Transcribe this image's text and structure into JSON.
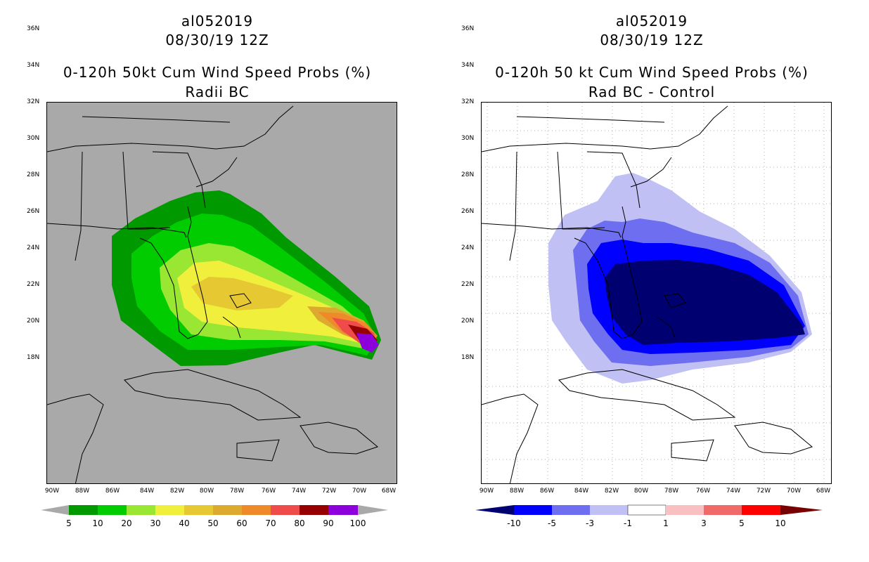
{
  "left_panel": {
    "storm_id": "al052019",
    "datetime": "08/30/19 12Z",
    "title": "0-120h 50kt Cum Wind Speed Probs (%)",
    "subtitle": "Radii BC",
    "background_color": "#a9a9a9",
    "colorbar": {
      "colors": [
        "#009a00",
        "#00cc00",
        "#99e633",
        "#f0f03c",
        "#e6c832",
        "#dcaa2e",
        "#ee8a2a",
        "#f04b4b",
        "#960000",
        "#8c00dc"
      ],
      "labels": [
        "5",
        "10",
        "20",
        "30",
        "40",
        "50",
        "60",
        "70",
        "80",
        "90",
        "100"
      ]
    }
  },
  "right_panel": {
    "storm_id": "al052019",
    "datetime": "08/30/19 12Z",
    "title": "0-120h 50 kt Cum Wind Speed Probs (%)",
    "subtitle": "Rad BC - Control",
    "background_color": "#ffffff",
    "colorbar": {
      "colors": [
        "#000070",
        "#0000ff",
        "#6e6ef0",
        "#c0c0f4",
        "#ffffff",
        "#f8c0c0",
        "#f06a6a",
        "#ff0000",
        "#780000"
      ],
      "labels": [
        "-10",
        "-5",
        "-3",
        "-1",
        "1",
        "3",
        "5",
        "10"
      ]
    }
  },
  "axes": {
    "lat_labels": [
      "36N",
      "34N",
      "32N",
      "30N",
      "28N",
      "26N",
      "24N",
      "22N",
      "20N",
      "18N"
    ],
    "lon_labels": [
      "90W",
      "88W",
      "86W",
      "84W",
      "82W",
      "80W",
      "78W",
      "76W",
      "74W",
      "72W",
      "70W",
      "68W"
    ]
  }
}
